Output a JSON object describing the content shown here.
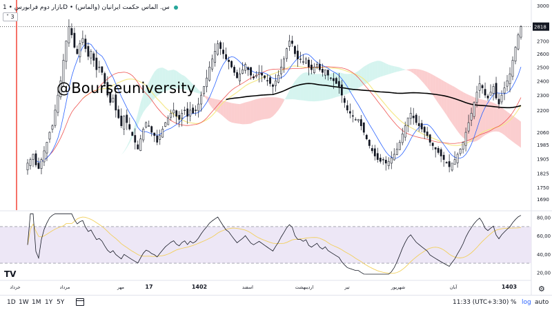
{
  "header": {
    "title": "بازار دوم فرابورس • 1D • س. الماس حکمت ایرانیان (والماس)",
    "symbol_name": "س. الماس حکمت ایرانیان (والماس)",
    "exchange": "بازار دوم فرابورس",
    "timeframe": "1D",
    "indicator_count": "3",
    "status_color": "#26a69a"
  },
  "watermark": "@Bourseuniversity",
  "bottom_bar": {
    "ranges": [
      "1D",
      "1W",
      "1M",
      "1Y",
      "5Y"
    ],
    "clock": "11:33 (UTC+3:30)",
    "percent": "%",
    "log": "log",
    "auto": "auto"
  },
  "colors": {
    "up": "#26a69a",
    "down": "#ef5350",
    "candle": "#131722",
    "tenkan": "#2962ff",
    "kijun": "#ef5350",
    "cloud_bull": "#b2ebe2",
    "cloud_bear": "#f7a5a8",
    "ma_long": "#000000",
    "ma_short": "#f5e98b",
    "rsi": "#131722",
    "rsi_ma": "#f2cf5b",
    "rsi_band": "#ede7f6",
    "rsi_curve_end": "#9c27b0"
  },
  "chart_data": [
    {
      "type": "candlestick",
      "title": "",
      "y_ticks": [
        3000,
        2818,
        2700,
        2600,
        2500,
        2400,
        2300,
        2200,
        2060,
        1985,
        1905,
        1825,
        1750,
        1690
      ],
      "last_price": 2818,
      "y_scale": "log",
      "x_ticks": [
        "خرداد",
        "مرداد",
        "مهر",
        "17",
        "1402",
        "اسفند",
        "اردیبهشت",
        "تیر",
        "شهریور",
        "آبان",
        "1403"
      ],
      "overlays": [
        "Ichimoku tenkan",
        "Ichimoku kijun",
        "Ichimoku cloud",
        "long MA",
        "short MA"
      ],
      "close_series": [
        1880,
        1900,
        1930,
        1870,
        1850,
        1900,
        1950,
        2000,
        2060,
        2100,
        2200,
        2300,
        2400,
        2550,
        2700,
        2818,
        2750,
        2650,
        2600,
        2680,
        2720,
        2640,
        2580,
        2620,
        2550,
        2480,
        2500,
        2460,
        2380,
        2300,
        2250,
        2280,
        2200,
        2150,
        2100,
        2160,
        2120,
        2080,
        2040,
        2000,
        1960,
        2020,
        2080,
        2120,
        2100,
        2060,
        2040,
        2000,
        2040,
        2080,
        2120,
        2150,
        2180,
        2200,
        2160,
        2140,
        2180,
        2200,
        2160,
        2200,
        2180,
        2200,
        2240,
        2300,
        2360,
        2420,
        2500,
        2560,
        2620,
        2680,
        2640,
        2600,
        2560,
        2540,
        2500,
        2460,
        2420,
        2450,
        2480,
        2520,
        2480,
        2440,
        2420,
        2440,
        2460,
        2440,
        2420,
        2400,
        2380,
        2360,
        2400,
        2440,
        2500,
        2560,
        2640,
        2700,
        2680,
        2600,
        2560,
        2560,
        2540,
        2560,
        2500,
        2480,
        2500,
        2520,
        2480,
        2460,
        2480,
        2440,
        2420,
        2400,
        2380,
        2360,
        2300,
        2250,
        2200,
        2180,
        2160,
        2140,
        2140,
        2100,
        2060,
        2020,
        1980,
        1950,
        1920,
        1900,
        1890,
        1900,
        1880,
        1890,
        1910,
        1930,
        1960,
        2000,
        2050,
        2100,
        2150,
        2180,
        2150,
        2120,
        2100,
        2080,
        2060,
        2040,
        2000,
        1980,
        1960,
        1940,
        1920,
        1900,
        1880,
        1860,
        1880,
        1900,
        1930,
        1960,
        2000,
        2060,
        2120,
        2180,
        2250,
        2320,
        2380,
        2350,
        2300,
        2280,
        2320,
        2360,
        2280,
        2240,
        2300,
        2350,
        2400,
        2450,
        2550,
        2650,
        2750,
        2818
      ],
      "long_ma_range": [
        2300,
        2360,
        2160,
        2220
      ],
      "ylim": [
        1690,
        3000
      ]
    },
    {
      "type": "line",
      "title": "",
      "series_name": "",
      "y_ticks": [
        80,
        60,
        40,
        20
      ],
      "bands": [
        30,
        70
      ],
      "ylim": [
        15,
        85
      ]
    }
  ]
}
